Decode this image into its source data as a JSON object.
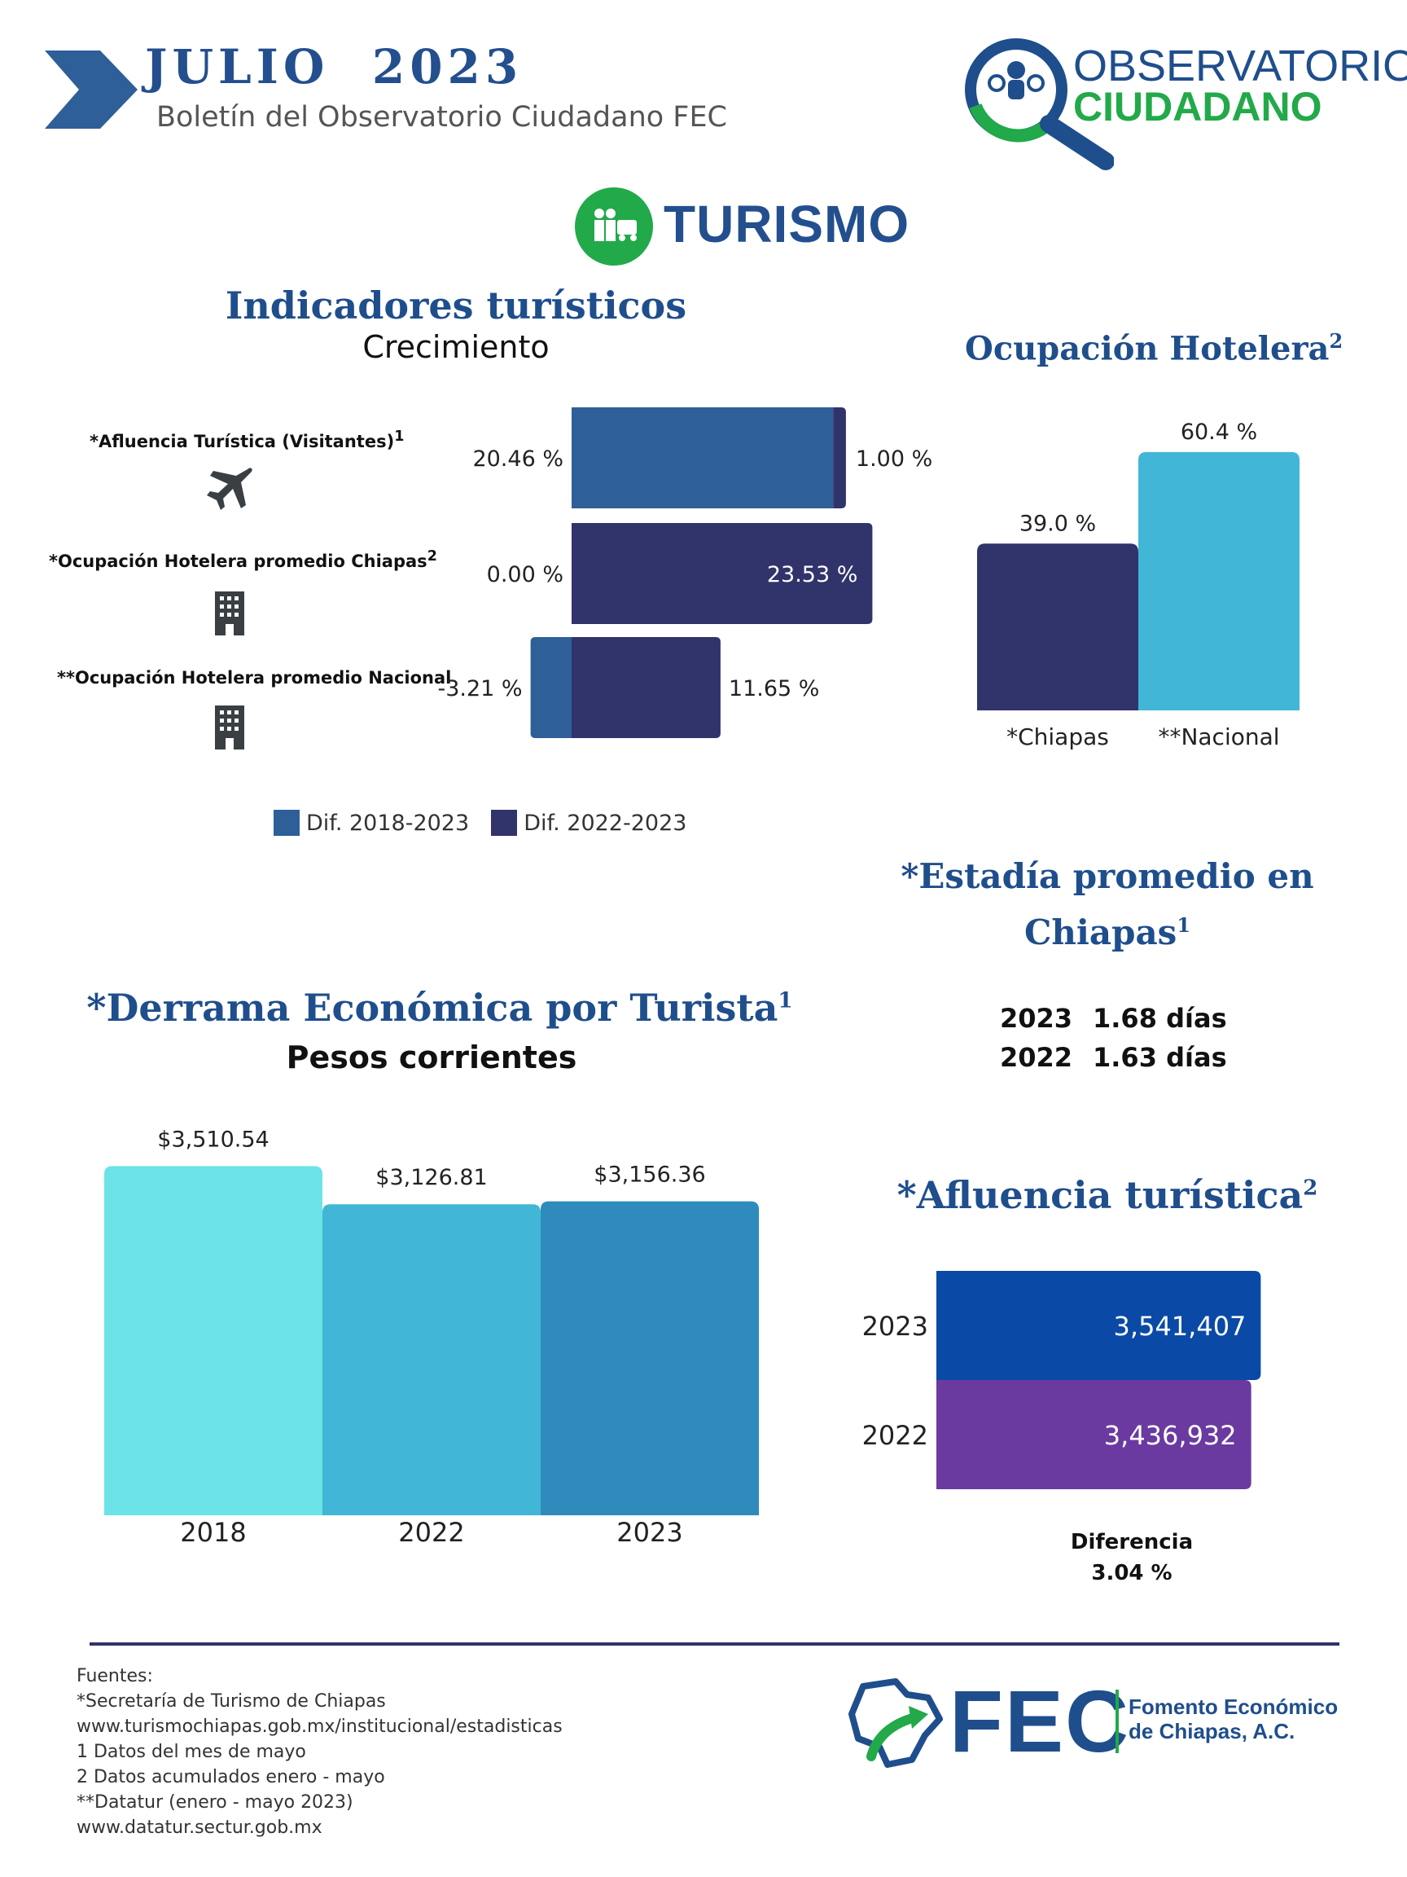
{
  "header": {
    "month_year": "JULIO  2023",
    "subtitle": "Boletín del Observatorio Ciudadano FEC",
    "logo_text_1": "OBSERVATORIO",
    "logo_text_2": "CIUDADANO"
  },
  "section": {
    "title": "TURISMO"
  },
  "indicators": {
    "title": "Indicadores turísticos",
    "subtitle": "Crecimiento",
    "rows": [
      {
        "label": "*Afluencia Turística (Visitantes)",
        "sup": "1",
        "icon": "airplane-icon"
      },
      {
        "label": "*Ocupación Hotelera promedio Chiapas",
        "sup": "2",
        "icon": "building-icon"
      },
      {
        "label": "**Ocupación Hotelera promedio Nacional",
        "sup": "",
        "icon": "building-icon"
      }
    ],
    "legend": [
      "Dif. 2018-2023",
      "Dif. 2022-2023"
    ]
  },
  "occupancy": {
    "title": "Ocupación Hotelera",
    "sup": "2"
  },
  "stay": {
    "title_1": "*Estadía promedio en",
    "title_2": "Chiapas",
    "sup": "1",
    "rows": [
      {
        "year": "2023",
        "value": "1.68 días"
      },
      {
        "year": "2022",
        "value": "1.63 días"
      }
    ]
  },
  "spending": {
    "title": "*Derrama Económica por Turista",
    "sup": "1",
    "subtitle": "Pesos corrientes"
  },
  "affluence": {
    "title": "*Afluencia turística",
    "sup": "2",
    "diff_label": "Diferencia",
    "diff_value": "3.04 %"
  },
  "footer": {
    "sources": [
      "Fuentes:",
      "*Secretaría de Turismo de Chiapas",
      "www.turismochiapas.gob.mx/institucional/estadisticas",
      "1 Datos del mes de mayo",
      "2 Datos acumulados enero - mayo",
      "**Datatur (enero - mayo 2023)",
      "www.datatur.sectur.gob.mx"
    ],
    "fec": "FEC",
    "fec_name_1": "Fomento Económico",
    "fec_name_2": "de Chiapas, A.C."
  },
  "chart_data": [
    {
      "type": "bar",
      "orientation": "horizontal",
      "categories": [
        "*Afluencia Turística (Visitantes)",
        "*Ocupación Hotelera promedio Chiapas",
        "**Ocupación Hotelera promedio Nacional"
      ],
      "series": [
        {
          "name": "Dif. 2018-2023",
          "values": [
            20.46,
            0.0,
            -3.21
          ],
          "labels": [
            "20.46 %",
            "0.00 %",
            "-3.21 %"
          ],
          "color": "#2e5f98"
        },
        {
          "name": "Dif. 2022-2023",
          "values": [
            1.0,
            23.53,
            11.65
          ],
          "labels": [
            "1.00 %",
            "23.53 %",
            "11.65 %"
          ],
          "color": "#31336b"
        }
      ]
    },
    {
      "type": "bar",
      "categories": [
        "*Chiapas",
        "**Nacional"
      ],
      "values": [
        39.0,
        60.4
      ],
      "labels": [
        "39.0 %",
        "60.4 %"
      ],
      "colors": [
        "#31336b",
        "#42b6d6"
      ]
    },
    {
      "type": "bar",
      "categories": [
        "2018",
        "2022",
        "2023"
      ],
      "values": [
        3510.54,
        3126.81,
        3156.36
      ],
      "labels": [
        "$3,510.54",
        "$3,126.81",
        "$3,156.36"
      ],
      "colors": [
        "#6be3e7",
        "#42b6d6",
        "#2e8bbb"
      ]
    },
    {
      "type": "bar",
      "orientation": "horizontal",
      "categories": [
        "2023",
        "2022"
      ],
      "values": [
        3541407,
        3436932
      ],
      "labels": [
        "3,541,407",
        "3,436,932"
      ],
      "colors": [
        "#0a4aa6",
        "#6a3aa0"
      ]
    }
  ]
}
